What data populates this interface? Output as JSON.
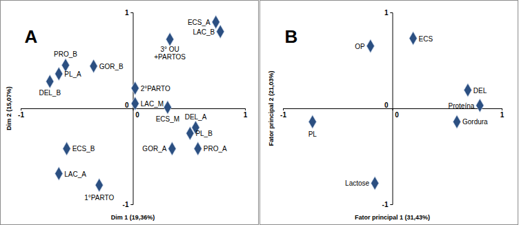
{
  "chart_data": [
    {
      "type": "scatter",
      "title": "A",
      "x_label": "Dim 1 (19,36%)",
      "y_label": "Dim 2 (15,07%)",
      "xlim": [
        -1,
        1
      ],
      "ylim": [
        -1,
        1
      ],
      "xticks": [
        -1,
        0,
        1
      ],
      "yticks": [
        -1,
        0,
        1
      ],
      "color": "#2b4f81",
      "marker": "diamond",
      "labels": [
        "ECS_A",
        "LAC_B",
        "3° OU\n+PARTOS",
        "PRO_B",
        "PL_A",
        "GOR_B",
        "DEL_B",
        "2°PARTO",
        "LAC_M",
        "ECS_M",
        "DEL_A",
        "PL_B",
        "ECS_B",
        "GOR_A",
        "PRO_A",
        "LAC_A",
        "1°PARTO"
      ],
      "x": [
        0.74,
        0.78,
        0.33,
        -0.6,
        -0.66,
        -0.35,
        -0.74,
        0.02,
        0.02,
        0.31,
        0.56,
        0.51,
        -0.59,
        0.35,
        0.58,
        -0.66,
        -0.3
      ],
      "y": [
        0.9,
        0.8,
        0.72,
        0.45,
        0.36,
        0.44,
        0.28,
        0.21,
        0.05,
        0.01,
        -0.2,
        -0.26,
        -0.42,
        -0.42,
        -0.42,
        -0.68,
        -0.8
      ]
    },
    {
      "type": "scatter",
      "title": "B",
      "x_label": "Fator principal 1 (31,43%)",
      "y_label": "Fator principal 2 (21,03%)",
      "xlim": [
        -1,
        1
      ],
      "ylim": [
        -1,
        1
      ],
      "xticks": [
        -1,
        0,
        1
      ],
      "yticks": [
        -1,
        0,
        1
      ],
      "color": "#2b4f81",
      "marker": "diamond",
      "labels": [
        "ECS",
        "OP",
        "DEL",
        "Proteína",
        "Gordura",
        "PL",
        "Lactose"
      ],
      "x": [
        0.19,
        -0.2,
        0.69,
        0.8,
        0.59,
        -0.73,
        -0.16
      ],
      "y": [
        0.73,
        0.65,
        0.19,
        0.03,
        -0.14,
        -0.14,
        -0.78
      ]
    }
  ]
}
